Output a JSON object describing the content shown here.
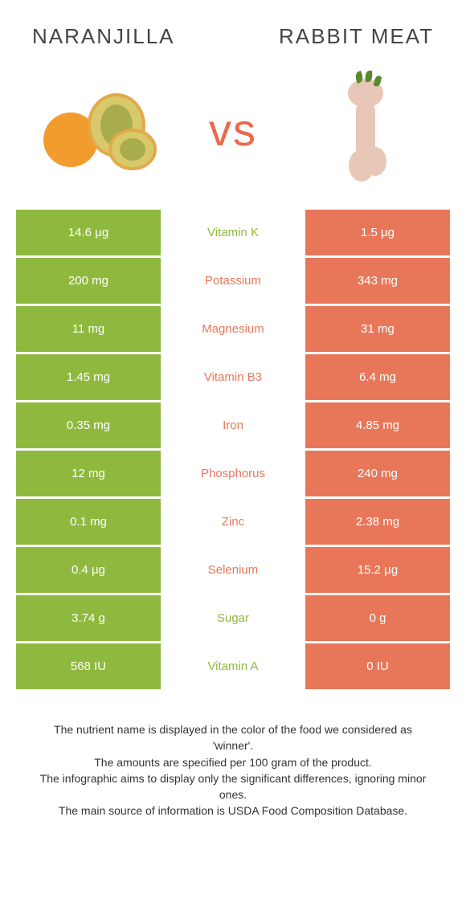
{
  "header": {
    "left_title": "NARANJILLA",
    "right_title": "RABBIT MEAT"
  },
  "vs_label": "vs",
  "colors": {
    "green": "#8fb93e",
    "orange": "#e8775a",
    "text_dark": "#444444"
  },
  "rows": [
    {
      "left": "14.6 µg",
      "nutrient": "Vitamin K",
      "right": "1.5 µg",
      "winner": "left"
    },
    {
      "left": "200 mg",
      "nutrient": "Potassium",
      "right": "343 mg",
      "winner": "right"
    },
    {
      "left": "11 mg",
      "nutrient": "Magnesium",
      "right": "31 mg",
      "winner": "right"
    },
    {
      "left": "1.45 mg",
      "nutrient": "Vitamin B3",
      "right": "6.4 mg",
      "winner": "right"
    },
    {
      "left": "0.35 mg",
      "nutrient": "Iron",
      "right": "4.85 mg",
      "winner": "right"
    },
    {
      "left": "12 mg",
      "nutrient": "Phosphorus",
      "right": "240 mg",
      "winner": "right"
    },
    {
      "left": "0.1 mg",
      "nutrient": "Zinc",
      "right": "2.38 mg",
      "winner": "right"
    },
    {
      "left": "0.4 µg",
      "nutrient": "Selenium",
      "right": "15.2 µg",
      "winner": "right"
    },
    {
      "left": "3.74 g",
      "nutrient": "Sugar",
      "right": "0 g",
      "winner": "left"
    },
    {
      "left": "568 IU",
      "nutrient": "Vitamin A",
      "right": "0 IU",
      "winner": "left"
    }
  ],
  "footer": {
    "line1": "The nutrient name is displayed in the color of the food we considered as 'winner'.",
    "line2": "The amounts are specified per 100 gram of the product.",
    "line3": "The infographic aims to display only the significant differences, ignoring minor ones.",
    "line4": "The main source of information is USDA Food Composition Database."
  }
}
